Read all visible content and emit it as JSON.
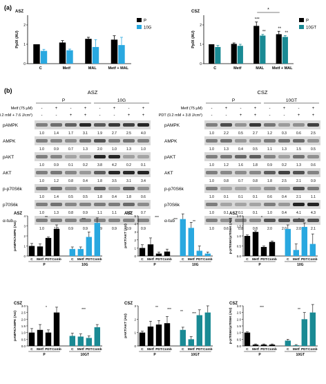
{
  "panel_labels": {
    "a": "(a)",
    "b": "(b)"
  },
  "colors": {
    "parental": "#000000",
    "resistant_10G": "#29a8e0",
    "resistant_10GT": "#1a8a94",
    "blot_bg": "#d8d8d8",
    "band": "#1a1a1a"
  },
  "chart_data": [
    {
      "id": "a-asz",
      "type": "bar",
      "title": "ASZ",
      "ylabel": "PpIX (AU)",
      "ylim": [
        0,
        2.5
      ],
      "yticks": [
        "0",
        "1",
        "2"
      ],
      "categories": [
        "C",
        "Metf",
        "MAL",
        "Metf + MAL"
      ],
      "series": [
        {
          "name": "P",
          "color": "#000000",
          "values": [
            1.0,
            1.09,
            1.28,
            1.24
          ],
          "err": [
            0,
            0.1,
            0.08,
            0.2
          ]
        },
        {
          "name": "10G",
          "color": "#29a8e0",
          "values": [
            0.66,
            0.69,
            0.86,
            0.96
          ],
          "err": [
            0.08,
            0.06,
            0.38,
            0.4
          ]
        }
      ],
      "legend": [
        "P",
        "10G"
      ],
      "annotations": []
    },
    {
      "id": "a-csz",
      "type": "bar",
      "title": "CSZ",
      "ylabel": "PpIX (AU)",
      "ylim": [
        0,
        2.5
      ],
      "yticks": [
        "0",
        "1",
        "2"
      ],
      "categories": [
        "C",
        "Metf",
        "MAL",
        "Metf + MAL"
      ],
      "series": [
        {
          "name": "P",
          "color": "#000000",
          "values": [
            1.0,
            1.02,
            1.95,
            1.52
          ],
          "err": [
            0,
            0.05,
            0.2,
            0.15
          ]
        },
        {
          "name": "10GT",
          "color": "#1a8a94",
          "values": [
            0.86,
            0.92,
            1.45,
            1.38
          ],
          "err": [
            0.08,
            0.08,
            0.06,
            0.07
          ]
        }
      ],
      "legend": [
        "P",
        "10GT"
      ],
      "annotations": [
        "*",
        "***",
        "**",
        "**",
        "**"
      ]
    },
    {
      "id": "g1",
      "type": "bar",
      "title": "ASZ",
      "ylabel": "pAMPK/AMPK (AU)",
      "ylim": [
        0,
        4
      ],
      "yticks": [
        "0",
        "1",
        "2",
        "3",
        "4"
      ],
      "categories": [
        "C",
        "Metf",
        "PDT",
        "Comb",
        "C",
        "Metf",
        "PDT",
        "Comb"
      ],
      "groups": [
        "P",
        "10G"
      ],
      "values": [
        1.0,
        0.95,
        1.8,
        2.7,
        0.7,
        0.7,
        1.9,
        3.3
      ],
      "err": [
        0.25,
        0.25,
        0.1,
        0.4,
        0.2,
        0.2,
        0.5,
        0.5
      ],
      "colors": [
        "#000000",
        "#000000",
        "#000000",
        "#000000",
        "#29a8e0",
        "#29a8e0",
        "#29a8e0",
        "#29a8e0"
      ],
      "annotations": [
        "**",
        "***"
      ]
    },
    {
      "id": "g2",
      "type": "bar",
      "title": "ASZ",
      "ylabel": "pAKT/AKT (AU)",
      "ylim": [
        0,
        5
      ],
      "yticks": [
        "0",
        "1",
        "2",
        "3",
        "4",
        "5"
      ],
      "categories": [
        "C",
        "Metf",
        "PDT",
        "Comb",
        "C",
        "Metf",
        "PDT",
        "Comb"
      ],
      "groups": [
        "P",
        "10G"
      ],
      "values": [
        1.0,
        1.45,
        0.3,
        0.55,
        4.6,
        3.5,
        0.65,
        0.3
      ],
      "err": [
        0.4,
        0.8,
        0.2,
        0.3,
        0.8,
        0.7,
        0.6,
        0.2
      ],
      "colors": [
        "#000000",
        "#000000",
        "#000000",
        "#000000",
        "#29a8e0",
        "#29a8e0",
        "#29a8e0",
        "#29a8e0"
      ],
      "annotations": [
        "***",
        "***",
        "**"
      ]
    },
    {
      "id": "g3",
      "type": "bar",
      "title": "ASZ",
      "ylabel": "p-p70S6K/p70S6K (AU)",
      "ylim": [
        0,
        2
      ],
      "yticks": [
        "0.0",
        "0.5",
        "1.0",
        "1.5",
        "2.0"
      ],
      "categories": [
        "C",
        "Metf",
        "PDT",
        "Comb",
        "C",
        "Metf",
        "PDT",
        "Comb"
      ],
      "groups": [
        "P",
        "10G"
      ],
      "values": [
        1.0,
        1.2,
        0.45,
        0.7,
        1.35,
        0.3,
        1.45,
        0.6
      ],
      "err": [
        0.05,
        0.05,
        0.05,
        0.05,
        0.2,
        0.3,
        0.2,
        0.5
      ],
      "colors": [
        "#000000",
        "#000000",
        "#000000",
        "#000000",
        "#29a8e0",
        "#29a8e0",
        "#29a8e0",
        "#29a8e0"
      ],
      "annotations": [
        "*",
        "*"
      ]
    },
    {
      "id": "g4",
      "type": "bar",
      "title": "CSZ",
      "ylabel": "pAMPK/AMPK (AU)",
      "ylim": [
        0,
        3
      ],
      "yticks": [
        "0.0",
        "0.5",
        "1.0",
        "1.5",
        "2.0",
        "2.5",
        "3.0"
      ],
      "categories": [
        "C",
        "Metf",
        "PDT",
        "Comb",
        "C",
        "Metf",
        "PDT",
        "Comb"
      ],
      "groups": [
        "P",
        "10GT"
      ],
      "values": [
        1.0,
        1.2,
        1.0,
        2.5,
        0.75,
        0.7,
        0.6,
        1.4
      ],
      "err": [
        0.3,
        0.4,
        0.2,
        0.4,
        0.2,
        0.2,
        0.15,
        0.2
      ],
      "colors": [
        "#000000",
        "#000000",
        "#000000",
        "#000000",
        "#1a8a94",
        "#1a8a94",
        "#1a8a94",
        "#1a8a94"
      ],
      "annotations": [
        "*",
        "***"
      ]
    },
    {
      "id": "g5",
      "type": "bar",
      "title": "CSZ",
      "ylabel": "pAKT/AKT (AU)",
      "ylim": [
        0,
        3
      ],
      "yticks": [
        "0",
        "1",
        "2",
        "3"
      ],
      "categories": [
        "C",
        "Metf",
        "PDT",
        "Comb",
        "C",
        "Metf",
        "PDT",
        "Comb"
      ],
      "groups": [
        "P",
        "10GT"
      ],
      "values": [
        1.0,
        1.45,
        1.6,
        1.7,
        1.2,
        0.5,
        2.3,
        2.5
      ],
      "err": [
        0.1,
        0.4,
        0.3,
        0.5,
        0.2,
        0.2,
        0.4,
        0.5
      ],
      "colors": [
        "#000000",
        "#000000",
        "#000000",
        "#000000",
        "#1a8a94",
        "#1a8a94",
        "#1a8a94",
        "#1a8a94"
      ],
      "annotations": [
        "**",
        "***",
        "**",
        "***"
      ]
    },
    {
      "id": "g6",
      "type": "bar",
      "title": "CSZ",
      "ylabel": "p-p70S6K/p70S6K (AU)",
      "ylim": [
        0,
        3
      ],
      "yticks": [
        "0.0",
        "0.5",
        "1.0",
        "1.5",
        "2.0",
        "2.5",
        "3.0"
      ],
      "categories": [
        "C",
        "Metf",
        "PDT",
        "Comb",
        "C",
        "Metf",
        "PDT",
        "Comb"
      ],
      "groups": [
        "P",
        "10GT"
      ],
      "values": [
        1.0,
        0.1,
        0.1,
        0.1,
        0.4,
        0.05,
        2.0,
        2.5
      ],
      "err": [
        0.05,
        0.05,
        0.05,
        0.05,
        0.1,
        0.05,
        0.5,
        0.6
      ],
      "colors": [
        "#000000",
        "#000000",
        "#000000",
        "#000000",
        "#1a8a94",
        "#1a8a94",
        "#1a8a94",
        "#1a8a94"
      ],
      "annotations": [
        "***",
        "**"
      ]
    }
  ],
  "blots": [
    {
      "id": "blot-asz",
      "title": "ASZ",
      "groups": [
        "P",
        "10G"
      ],
      "treatments": [
        {
          "label": "Metf (75 µM)",
          "signs": [
            "-",
            "+",
            "-",
            "+",
            "-",
            "+",
            "-",
            "+"
          ]
        },
        {
          "label": "PDT (0.2 mM + 7.6 J/cm²)",
          "signs": [
            "-",
            "-",
            "+",
            "+",
            "-",
            "-",
            "+",
            "+"
          ]
        }
      ],
      "rows": [
        {
          "label": "pAMPK",
          "values": [
            "1.0",
            "1.4",
            "1.7",
            "3.1",
            "1.9",
            "2.7",
            "2.5",
            "4.0"
          ]
        },
        {
          "label": "AMPK",
          "values": [
            "1.0",
            "0.9",
            "0.7",
            "1.3",
            "2.0",
            "1.0",
            "1.3",
            "1.0"
          ]
        },
        {
          "label": "pAKT",
          "values": [
            "1.0",
            "0.9",
            "0.1",
            "0.2",
            "3.8",
            "4.2",
            "0.2",
            "0.1"
          ]
        },
        {
          "label": "AKT",
          "values": [
            "1.0",
            "1.2",
            "0.8",
            "0.4",
            "1.8",
            "3.5",
            "3.1",
            "3.4"
          ]
        },
        {
          "label": "p-p70S6k",
          "values": [
            "1.0",
            "1.4",
            "0.5",
            "0.5",
            "1.8",
            "0.4",
            "1.8",
            "0.6"
          ]
        },
        {
          "label": "p70S6k",
          "values": [
            "1.0",
            "1.3",
            "0.8",
            "0.9",
            "1.1",
            "1.1",
            "1.5",
            "0.7"
          ]
        },
        {
          "label": "α-tub",
          "values": [
            "1.0",
            "1.0",
            "0.9",
            "0.9",
            "0.9",
            "0.9",
            "0.9",
            "0.9"
          ]
        }
      ]
    },
    {
      "id": "blot-csz",
      "title": "CSZ",
      "groups": [
        "P",
        "10GT"
      ],
      "treatments": [
        {
          "label": "Metf (75 µM)",
          "signs": [
            "-",
            "+",
            "-",
            "+",
            "-",
            "+",
            "-",
            "+"
          ]
        },
        {
          "label": "PDT (0.2 mM + 3.8 J/cm²)",
          "signs": [
            "-",
            "-",
            "+",
            "+",
            "-",
            "-",
            "+",
            "+"
          ]
        }
      ],
      "rows": [
        {
          "label": "pAMPK",
          "values": [
            "1.0",
            "2.2",
            "0.5",
            "2.7",
            "1.2",
            "0.3",
            "0.6",
            "2.5"
          ]
        },
        {
          "label": "AMPK",
          "values": [
            "1.0",
            "1.3",
            "0.4",
            "0.5",
            "1.1",
            "1.3",
            "1.5",
            "0.5"
          ]
        },
        {
          "label": "pAKT",
          "values": [
            "1.0",
            "1.2",
            "1.6",
            "1.8",
            "0.9",
            "0.2",
            "1.3",
            "0.6"
          ]
        },
        {
          "label": "AKT",
          "values": [
            "1.0",
            "0.8",
            "0.7",
            "0.8",
            "1.8",
            "2.5",
            "2.1",
            "0.9"
          ]
        },
        {
          "label": "p-p70S6k",
          "values": [
            "1.0",
            "0.1",
            "0.1",
            "0.1",
            "0.6",
            "0.4",
            "2.1",
            "1.1"
          ]
        },
        {
          "label": "p70S6k",
          "values": [
            "1.0",
            "0.1",
            "0.1",
            "0.1",
            "1.0",
            "0.4",
            "4.1",
            "4.3"
          ]
        },
        {
          "label": "α-tub",
          "values": [
            "1.0",
            "0.6",
            "0.8",
            "0.8",
            "2.0",
            "2.0",
            "2.0",
            "2.1"
          ]
        }
      ]
    }
  ]
}
